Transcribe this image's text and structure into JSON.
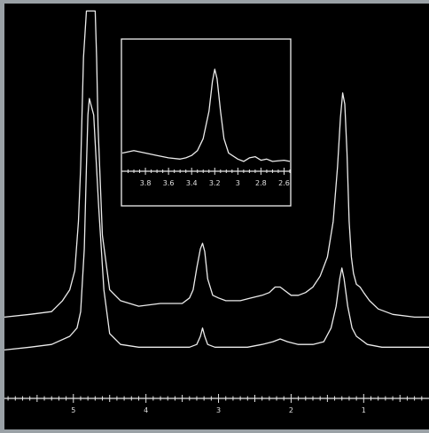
{
  "chart_data": [
    {
      "type": "line",
      "title": "",
      "xlabel": "",
      "ylabel": "",
      "x_reversed": true,
      "xlim": [
        5.95,
        0.1
      ],
      "xticks": [
        "5",
        "4",
        "3",
        "2",
        "1"
      ],
      "series": [
        {
          "x": [
            5.95,
            5.6,
            5.3,
            5.05,
            4.95,
            4.9,
            4.85,
            4.82,
            4.8,
            4.78,
            4.72,
            4.65,
            4.58,
            4.5,
            4.35,
            4.1,
            3.8,
            3.4,
            3.3,
            3.25,
            3.22,
            3.19,
            3.15,
            3.05,
            2.9,
            2.6,
            2.4,
            2.25,
            2.15,
            2.05,
            1.9,
            1.7,
            1.55,
            1.45,
            1.38,
            1.33,
            1.3,
            1.27,
            1.22,
            1.16,
            1.1,
            1.05,
            0.95,
            0.75,
            0.5,
            0.1
          ],
          "y": [
            0.08,
            0.09,
            0.1,
            0.13,
            0.16,
            0.22,
            0.45,
            0.75,
            0.94,
            1.0,
            0.94,
            0.6,
            0.3,
            0.14,
            0.1,
            0.09,
            0.09,
            0.09,
            0.1,
            0.13,
            0.16,
            0.13,
            0.1,
            0.09,
            0.09,
            0.09,
            0.1,
            0.11,
            0.12,
            0.11,
            0.1,
            0.1,
            0.11,
            0.16,
            0.24,
            0.34,
            0.38,
            0.34,
            0.24,
            0.16,
            0.13,
            0.12,
            0.1,
            0.09,
            0.09,
            0.09
          ]
        },
        {
          "x": [
            5.95,
            5.6,
            5.3,
            5.15,
            5.05,
            4.98,
            4.93,
            4.9,
            4.86,
            4.82,
            4.78,
            4.74,
            4.7,
            4.68,
            4.66,
            4.6,
            4.5,
            4.35,
            4.1,
            3.8,
            3.5,
            3.4,
            3.35,
            3.3,
            3.25,
            3.22,
            3.19,
            3.15,
            3.08,
            3.0,
            2.9,
            2.7,
            2.55,
            2.4,
            2.3,
            2.22,
            2.15,
            2.1,
            2.0,
            1.9,
            1.8,
            1.7,
            1.6,
            1.5,
            1.42,
            1.36,
            1.32,
            1.29,
            1.26,
            1.23,
            1.2,
            1.17,
            1.14,
            1.1,
            1.05,
            1.0,
            0.92,
            0.8,
            0.6,
            0.3,
            0.1
          ],
          "y": [
            0.2,
            0.21,
            0.22,
            0.26,
            0.3,
            0.37,
            0.55,
            0.75,
            1.15,
            1.32,
            1.32,
            1.32,
            1.32,
            1.15,
            0.9,
            0.5,
            0.3,
            0.26,
            0.24,
            0.25,
            0.25,
            0.27,
            0.3,
            0.38,
            0.45,
            0.47,
            0.44,
            0.34,
            0.28,
            0.27,
            0.26,
            0.26,
            0.27,
            0.28,
            0.29,
            0.31,
            0.31,
            0.3,
            0.28,
            0.28,
            0.29,
            0.31,
            0.35,
            0.42,
            0.55,
            0.75,
            0.93,
            1.02,
            0.98,
            0.8,
            0.55,
            0.42,
            0.36,
            0.32,
            0.31,
            0.29,
            0.26,
            0.23,
            0.21,
            0.2,
            0.2
          ]
        }
      ]
    },
    {
      "type": "line",
      "title": "",
      "xlabel": "",
      "ylabel": "",
      "x_reversed": true,
      "xlim": [
        4.0,
        2.55
      ],
      "xticks": [
        "3.8",
        "3.6",
        "3.4",
        "3.2",
        "3",
        "2.8",
        "2.6"
      ],
      "series": [
        {
          "x": [
            4.0,
            3.9,
            3.8,
            3.7,
            3.6,
            3.5,
            3.45,
            3.4,
            3.35,
            3.3,
            3.25,
            3.22,
            3.2,
            3.18,
            3.15,
            3.12,
            3.08,
            3.0,
            2.95,
            2.9,
            2.85,
            2.8,
            2.75,
            2.7,
            2.6,
            2.55
          ],
          "y": [
            0.1,
            0.12,
            0.1,
            0.08,
            0.06,
            0.05,
            0.06,
            0.08,
            0.12,
            0.22,
            0.45,
            0.7,
            0.8,
            0.72,
            0.45,
            0.22,
            0.1,
            0.05,
            0.03,
            0.06,
            0.07,
            0.04,
            0.05,
            0.03,
            0.04,
            0.03
          ]
        }
      ]
    }
  ]
}
